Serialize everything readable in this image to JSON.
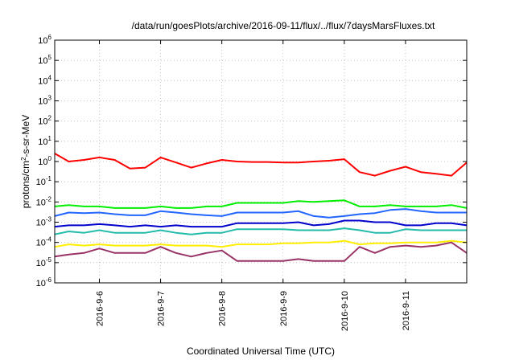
{
  "chart_data": {
    "type": "line",
    "title": "/data/run/goesPlots/archive/2016-09-11/flux/../flux/7daysMarsFluxes.txt",
    "xlabel": "Coordinated Universal Time (UTC)",
    "ylabel_base": "protons/cm",
    "ylabel_exp": "2",
    "ylabel_rest": "-s-sr-MeV",
    "x_range": [
      "2016-09-05 06:30",
      "2016-09-11 23:59"
    ],
    "y_scale": "log",
    "ylim": [
      1e-06,
      1000000.0
    ],
    "grid": true,
    "legend": "none",
    "x_ticks": [
      "2016-9-6",
      "2016-9-7",
      "2016-9-8",
      "2016-9-9",
      "2016-9-10",
      "2016-9-11"
    ],
    "y_ticks": [
      {
        "base": "10",
        "exp": "6"
      },
      {
        "base": "10",
        "exp": "5"
      },
      {
        "base": "10",
        "exp": "4"
      },
      {
        "base": "10",
        "exp": "3"
      },
      {
        "base": "10",
        "exp": "2"
      },
      {
        "base": "10",
        "exp": "1"
      },
      {
        "base": "10",
        "exp": "0"
      },
      {
        "base": "10",
        "exp": "-1"
      },
      {
        "base": "10",
        "exp": "-2"
      },
      {
        "base": "10",
        "exp": "-3"
      },
      {
        "base": "10",
        "exp": "-4"
      },
      {
        "base": "10",
        "exp": "-5"
      },
      {
        "base": "10",
        "exp": "-6"
      }
    ],
    "x": [
      "2016-09-05 06:30",
      "2016-09-05 12:00",
      "2016-09-05 18:00",
      "2016-09-06 00:00",
      "2016-09-06 06:00",
      "2016-09-06 12:00",
      "2016-09-06 18:00",
      "2016-09-07 00:00",
      "2016-09-07 06:00",
      "2016-09-07 12:00",
      "2016-09-07 18:00",
      "2016-09-08 00:00",
      "2016-09-08 06:00",
      "2016-09-08 12:00",
      "2016-09-08 18:00",
      "2016-09-09 00:00",
      "2016-09-09 06:00",
      "2016-09-09 12:00",
      "2016-09-09 18:00",
      "2016-09-10 00:00",
      "2016-09-10 06:00",
      "2016-09-10 12:00",
      "2016-09-10 18:00",
      "2016-09-11 00:00",
      "2016-09-11 06:00",
      "2016-09-11 12:00",
      "2016-09-11 18:00",
      "2016-09-11 23:59"
    ],
    "series": [
      {
        "color": "#ff0000",
        "values": [
          2.5,
          1.0,
          1.2,
          1.6,
          1.2,
          0.45,
          0.5,
          1.6,
          0.9,
          0.5,
          0.8,
          1.2,
          1.0,
          0.95,
          0.95,
          0.9,
          0.9,
          1.0,
          1.1,
          1.3,
          0.3,
          0.2,
          0.35,
          0.55,
          0.3,
          0.25,
          0.2,
          0.9
        ]
      },
      {
        "color": "#00ee00",
        "values": [
          0.006,
          0.007,
          0.006,
          0.006,
          0.005,
          0.005,
          0.005,
          0.006,
          0.005,
          0.005,
          0.006,
          0.006,
          0.009,
          0.009,
          0.009,
          0.009,
          0.011,
          0.01,
          0.011,
          0.012,
          0.006,
          0.006,
          0.007,
          0.006,
          0.006,
          0.006,
          0.007,
          0.005
        ]
      },
      {
        "color": "#2266ff",
        "values": [
          0.002,
          0.003,
          0.0028,
          0.003,
          0.0025,
          0.0022,
          0.0022,
          0.0035,
          0.003,
          0.0025,
          0.0022,
          0.002,
          0.003,
          0.003,
          0.003,
          0.003,
          0.0035,
          0.002,
          0.0017,
          0.002,
          0.0025,
          0.0028,
          0.004,
          0.0045,
          0.0035,
          0.003,
          0.003,
          0.003
        ]
      },
      {
        "color": "#0000cc",
        "values": [
          0.0006,
          0.0007,
          0.0007,
          0.0008,
          0.0007,
          0.0006,
          0.0007,
          0.0006,
          0.0007,
          0.0006,
          0.0006,
          0.0006,
          0.0009,
          0.0009,
          0.0009,
          0.0009,
          0.001,
          0.0007,
          0.0008,
          0.0012,
          0.0012,
          0.001,
          0.001,
          0.0007,
          0.0007,
          0.0009,
          0.0009,
          0.0007
        ]
      },
      {
        "color": "#22bbaa",
        "values": [
          0.00025,
          0.00035,
          0.0003,
          0.0004,
          0.0003,
          0.0003,
          0.0003,
          0.0004,
          0.0003,
          0.00025,
          0.0003,
          0.0003,
          0.00045,
          0.00045,
          0.00045,
          0.00045,
          0.0004,
          0.0004,
          0.0004,
          0.0005,
          0.0004,
          0.0003,
          0.0003,
          0.00045,
          0.0004,
          0.0004,
          0.0004,
          0.0004
        ]
      },
      {
        "color": "#ffee00",
        "values": [
          6e-05,
          8e-05,
          7e-05,
          8e-05,
          7e-05,
          7e-05,
          7e-05,
          8e-05,
          7e-05,
          7e-05,
          7e-05,
          6e-05,
          8e-05,
          8e-05,
          8e-05,
          9e-05,
          9e-05,
          0.0001,
          0.0001,
          0.00012,
          8e-05,
          9e-05,
          9e-05,
          0.0001,
          0.0001,
          0.0001,
          0.00012,
          0.0001
        ]
      },
      {
        "color": "#993366",
        "values": [
          2e-05,
          2.5e-05,
          3e-05,
          5e-05,
          3e-05,
          3e-05,
          3e-05,
          6e-05,
          3e-05,
          2e-05,
          3e-05,
          4e-05,
          1.2e-05,
          1.2e-05,
          1.2e-05,
          1.2e-05,
          1.5e-05,
          1.2e-05,
          1.2e-05,
          1.2e-05,
          6e-05,
          3e-05,
          6e-05,
          7e-05,
          6e-05,
          7e-05,
          0.0001,
          3e-05
        ]
      }
    ]
  }
}
